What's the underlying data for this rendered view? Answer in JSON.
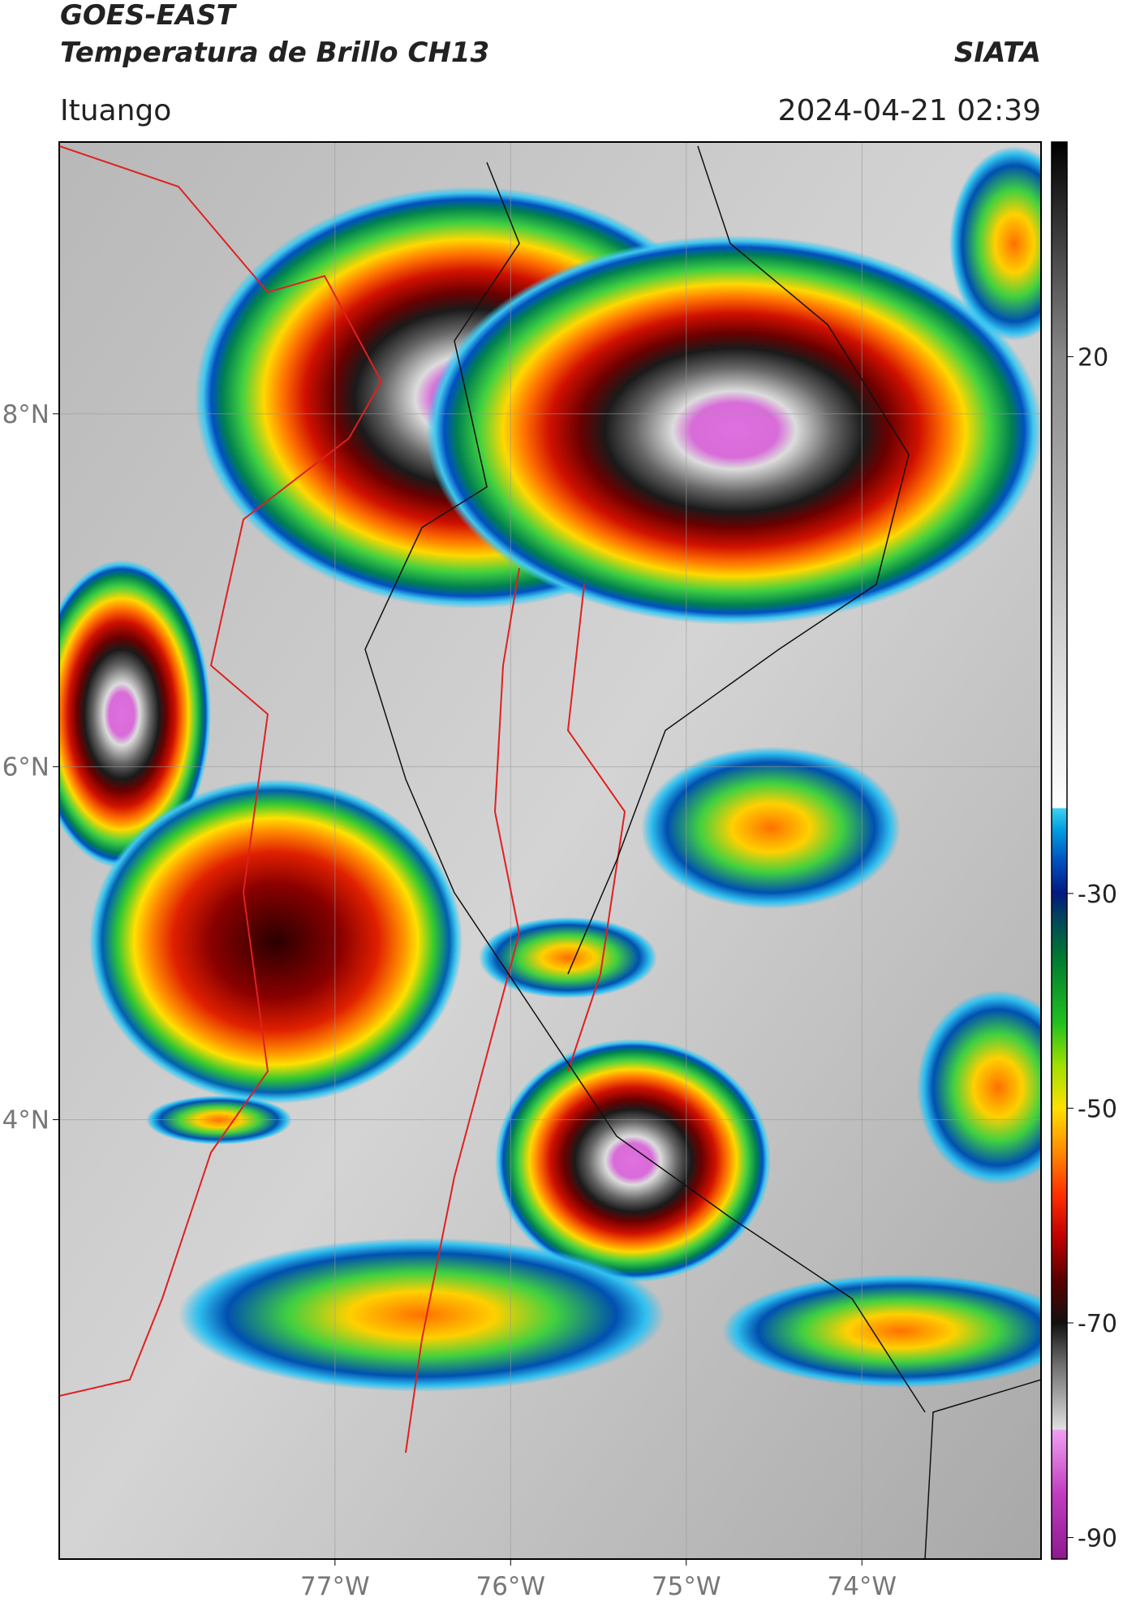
{
  "header": {
    "title": "GOES-EAST",
    "subtitle": "Temperatura de Brillo CH13",
    "source": "SIATA",
    "location": "Ituango",
    "datetime": "2024-04-21 02:39"
  },
  "chart_data": {
    "type": "map",
    "xlim": [
      -78.57,
      -72.98
    ],
    "ylim": [
      1.51,
      9.54
    ],
    "xticks": [
      {
        "value": -77,
        "label": "77°W"
      },
      {
        "value": -76,
        "label": "76°W"
      },
      {
        "value": -75,
        "label": "75°W"
      },
      {
        "value": -74,
        "label": "74°W"
      }
    ],
    "yticks": [
      {
        "value": 8,
        "label": "8°N"
      },
      {
        "value": 6,
        "label": "6°N"
      },
      {
        "value": 4,
        "label": "4°N"
      }
    ],
    "grid": true,
    "colorbar": {
      "ylim": [
        -92,
        40
      ],
      "yticks": [
        20,
        -30,
        -50,
        -70,
        -90
      ],
      "stops": [
        [
          -92,
          "#8e1a8e"
        ],
        [
          -86,
          "#c03cc0"
        ],
        [
          -80,
          "#f0a0f0"
        ],
        [
          -79.9,
          "#e0e0e0"
        ],
        [
          -74,
          "#707070"
        ],
        [
          -70,
          "#111111"
        ],
        [
          -66,
          "#5a0000"
        ],
        [
          -62,
          "#c00000"
        ],
        [
          -58,
          "#ff3000"
        ],
        [
          -54,
          "#ff8c00"
        ],
        [
          -50,
          "#ffe000"
        ],
        [
          -46,
          "#a0e000"
        ],
        [
          -42,
          "#20c020"
        ],
        [
          -36,
          "#007a30"
        ],
        [
          -32,
          "#004060"
        ],
        [
          -30,
          "#001a80"
        ],
        [
          -27,
          "#0050c0"
        ],
        [
          -24,
          "#00a0e0"
        ],
        [
          -22.1,
          "#40d0f0"
        ],
        [
          -22,
          "#ffffff"
        ],
        [
          20,
          "#888888"
        ],
        [
          40,
          "#000000"
        ]
      ]
    }
  }
}
